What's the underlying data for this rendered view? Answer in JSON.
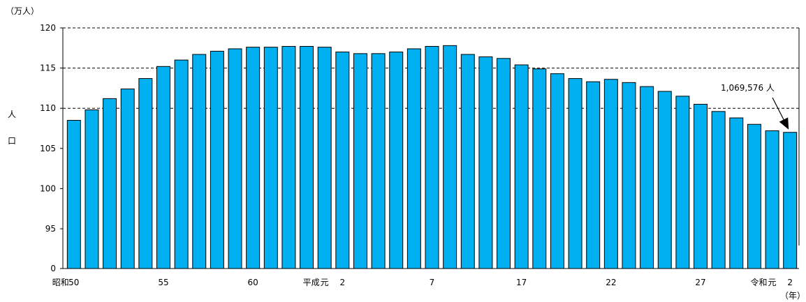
{
  "chart_data": {
    "type": "bar",
    "y_unit_label": "（万人）",
    "y_axis_label": [
      "人",
      "口"
    ],
    "x_unit_label": "（年）",
    "y_ticks": [
      0,
      95,
      100,
      105,
      110,
      115,
      120
    ],
    "ylim": [
      0,
      120
    ],
    "axis_break": "between 0 and 95",
    "gridlines_dashed_at": [
      110,
      115,
      120
    ],
    "bar_color": "#00b0f0",
    "bar_outline": "#000000",
    "values": [
      108.5,
      109.8,
      111.2,
      112.4,
      113.7,
      115.2,
      116.0,
      116.7,
      117.1,
      117.4,
      117.6,
      117.6,
      117.7,
      117.7,
      117.6,
      117.0,
      116.8,
      116.8,
      117.0,
      117.4,
      117.7,
      117.8,
      116.7,
      116.4,
      116.2,
      115.4,
      114.9,
      114.3,
      113.7,
      113.3,
      113.6,
      113.2,
      112.7,
      112.1,
      111.5,
      110.5,
      109.6,
      108.8,
      108.0,
      107.2,
      107.0
    ],
    "x_tick_labels": [
      {
        "index": 0,
        "label": "50",
        "era": "昭和"
      },
      {
        "index": 5,
        "label": "55"
      },
      {
        "index": 10,
        "label": "60"
      },
      {
        "index": 14,
        "label": "元",
        "era": "平成"
      },
      {
        "index": 15,
        "label": "2"
      },
      {
        "index": 20,
        "label": "7"
      },
      {
        "index": 25,
        "label": "17"
      },
      {
        "index": 30,
        "label": "22"
      },
      {
        "index": 35,
        "label": "27"
      },
      {
        "index": 39,
        "label": "元",
        "era": "令和"
      },
      {
        "index": 40,
        "label": "2"
      }
    ],
    "annotation": {
      "text": "1,069,576 人",
      "target_index": 40
    }
  }
}
